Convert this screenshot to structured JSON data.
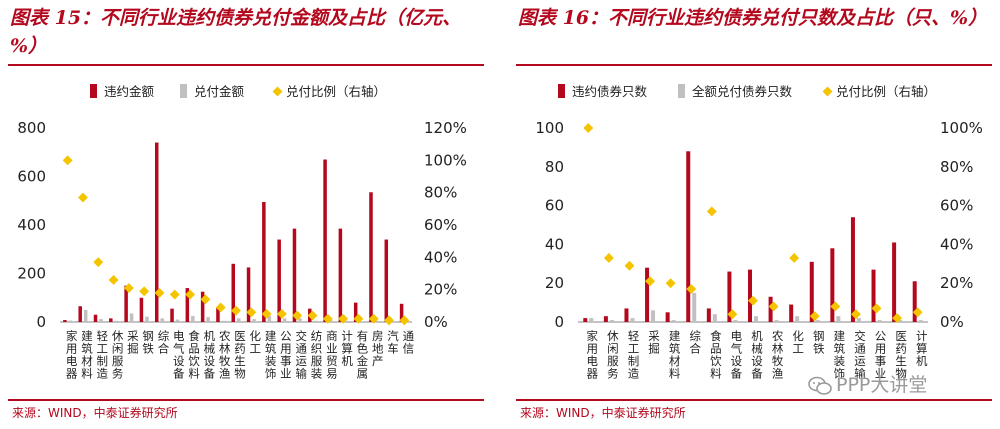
{
  "panels": [
    {
      "title": "图表 15：不同行业违约债券兑付金额及占比（亿元、%）",
      "source": "来源：WIND，中泰证券研究所",
      "chart_data": {
        "type": "bar",
        "categories": [
          "家用电器",
          "建筑材料",
          "轻工制造",
          "休闲服务",
          "采掘",
          "钢铁",
          "综合",
          "电气设备",
          "食品饮料",
          "机械设备",
          "农林牧渔",
          "医药生物",
          "化工",
          "建筑装饰",
          "公用事业",
          "交通运输",
          "纺织服装",
          "商业贸易",
          "计算机",
          "有色金属",
          "房地产",
          "汽车",
          "通信"
        ],
        "series": [
          {
            "name": "违约金额",
            "kind": "bar",
            "axis": "left",
            "color": "#b3081d",
            "values": [
              8,
              65,
              30,
              15,
              150,
              100,
              740,
              55,
              140,
              125,
              60,
              240,
              225,
              495,
              340,
              385,
              55,
              670,
              385,
              80,
              535,
              340,
              75
            ]
          },
          {
            "name": "兑付金额",
            "kind": "bar",
            "axis": "left",
            "color": "#c0c0c0",
            "values": [
              6,
              50,
              12,
              5,
              35,
              22,
              15,
              10,
              25,
              20,
              5,
              15,
              12,
              25,
              15,
              15,
              5,
              10,
              5,
              3,
              5,
              3,
              2
            ]
          },
          {
            "name": "兑付比例（右轴）",
            "kind": "marker",
            "axis": "right",
            "color": "#f5c400",
            "values": [
              100,
              77,
              37,
              26,
              21,
              19,
              18,
              17,
              17,
              14,
              9,
              7,
              6,
              5,
              5,
              4,
              4,
              2,
              2,
              2,
              2,
              1,
              1
            ]
          }
        ],
        "left_axis": {
          "ylim": [
            0,
            800
          ],
          "ticks": [
            "0",
            "200",
            "400",
            "600",
            "800"
          ]
        },
        "right_axis": {
          "ylim": [
            0,
            120
          ],
          "ticks": [
            "0%",
            "20%",
            "40%",
            "60%",
            "80%",
            "100%",
            "120%"
          ]
        },
        "legend": "top",
        "grid": false
      }
    },
    {
      "title": "图表 16：不同行业违约债券兑付只数及占比（只、%）",
      "source": "来源：WIND，中泰证券研究所",
      "chart_data": {
        "type": "bar",
        "categories": [
          "家用电器",
          "休闲服务",
          "轻工制造",
          "采掘",
          "建筑材料",
          "综合",
          "食品饮料",
          "电气设备",
          "机械设备",
          "农林牧渔",
          "化工",
          "钢铁",
          "建筑装饰",
          "交通运输",
          "公用事业",
          "医药生物",
          "计算机"
        ],
        "series": [
          {
            "name": "违约债券只数",
            "kind": "bar",
            "axis": "left",
            "color": "#b3081d",
            "values": [
              2,
              3,
              7,
              28,
              5,
              88,
              7,
              26,
              27,
              13,
              9,
              31,
              38,
              54,
              27,
              41,
              21
            ]
          },
          {
            "name": "全额兑付债券只数",
            "kind": "bar",
            "axis": "left",
            "color": "#c0c0c0",
            "values": [
              2,
              1,
              2,
              6,
              1,
              15,
              4,
              1,
              3,
              1,
              3,
              1,
              3,
              2,
              1,
              1,
              1
            ]
          },
          {
            "name": "兑付比例（右轴）",
            "kind": "marker",
            "axis": "right",
            "color": "#f5c400",
            "values": [
              100,
              33,
              29,
              21,
              20,
              17,
              57,
              4,
              11,
              8,
              33,
              3,
              8,
              4,
              7,
              2,
              5
            ]
          }
        ],
        "left_axis": {
          "ylim": [
            0,
            100
          ],
          "ticks": [
            "0",
            "20",
            "40",
            "60",
            "80",
            "100"
          ]
        },
        "right_axis": {
          "ylim": [
            0,
            100
          ],
          "ticks": [
            "0%",
            "20%",
            "40%",
            "60%",
            "80%",
            "100%"
          ]
        },
        "legend": "top",
        "grid": false
      }
    }
  ],
  "watermark": {
    "text": "PPP大讲堂",
    "icon": "wechat-icon"
  }
}
